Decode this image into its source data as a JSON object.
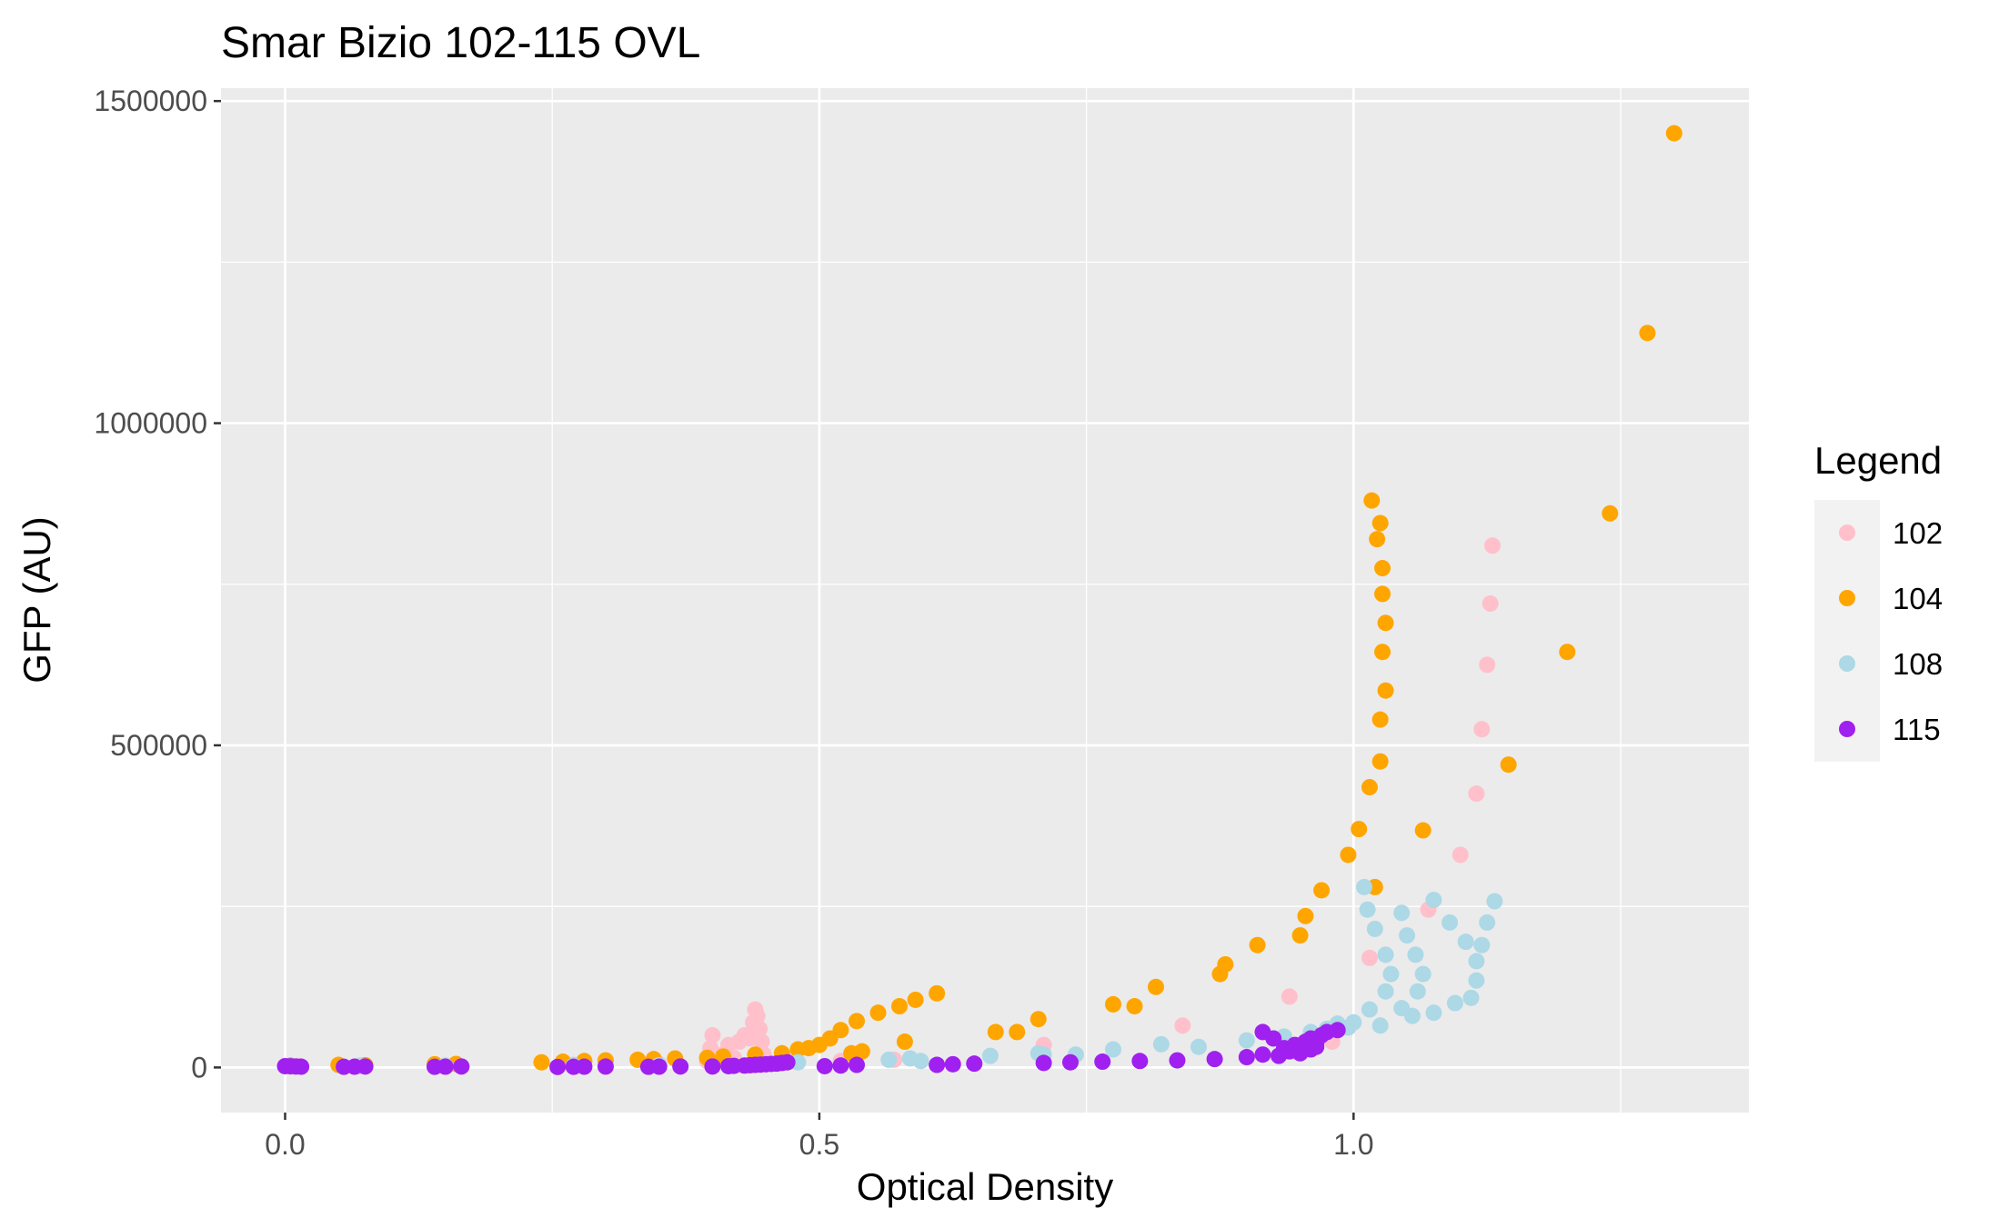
{
  "chart_data": {
    "type": "scatter",
    "title": "Smar Bizio 102-115 OVL",
    "xlabel": "Optical Density",
    "ylabel": "GFP (AU)",
    "xlim": [
      -0.06,
      1.37
    ],
    "ylim": [
      -70000,
      1520000
    ],
    "x_ticks": [
      0.0,
      0.5,
      1.0
    ],
    "x_tick_labels": [
      "0.0",
      "0.5",
      "1.0"
    ],
    "y_ticks": [
      0,
      500000,
      1000000,
      1500000
    ],
    "y_tick_labels": [
      "0",
      "500000",
      "1000000",
      "1500000"
    ],
    "grid": true,
    "legend": {
      "title": "Legend",
      "position": "right",
      "entries": [
        "102",
        "104",
        "108",
        "115"
      ]
    },
    "series": [
      {
        "name": "102",
        "color": "#FFC0CB",
        "points": [
          [
            0.005,
            2000
          ],
          [
            0.012,
            2500
          ],
          [
            0.07,
            3000
          ],
          [
            0.15,
            3000
          ],
          [
            0.27,
            4000
          ],
          [
            0.35,
            5000
          ],
          [
            0.395,
            10000
          ],
          [
            0.398,
            30000
          ],
          [
            0.4,
            50000
          ],
          [
            0.41,
            20000
          ],
          [
            0.415,
            35000
          ],
          [
            0.42,
            15000
          ],
          [
            0.425,
            40000
          ],
          [
            0.43,
            50000
          ],
          [
            0.435,
            45000
          ],
          [
            0.438,
            70000
          ],
          [
            0.44,
            90000
          ],
          [
            0.442,
            80000
          ],
          [
            0.444,
            60000
          ],
          [
            0.446,
            40000
          ],
          [
            0.448,
            20000
          ],
          [
            0.52,
            10000
          ],
          [
            0.57,
            12000
          ],
          [
            0.71,
            35000
          ],
          [
            0.84,
            65000
          ],
          [
            0.94,
            110000
          ],
          [
            0.98,
            40000
          ],
          [
            1.015,
            170000
          ],
          [
            1.07,
            245000
          ],
          [
            1.1,
            330000
          ],
          [
            1.115,
            425000
          ],
          [
            1.12,
            525000
          ],
          [
            1.125,
            625000
          ],
          [
            1.128,
            720000
          ],
          [
            1.13,
            810000
          ]
        ]
      },
      {
        "name": "104",
        "color": "#FFA500",
        "points": [
          [
            0.005,
            3000
          ],
          [
            0.05,
            4000
          ],
          [
            0.075,
            3500
          ],
          [
            0.14,
            5000
          ],
          [
            0.16,
            5500
          ],
          [
            0.24,
            8000
          ],
          [
            0.26,
            9000
          ],
          [
            0.28,
            10000
          ],
          [
            0.3,
            11000
          ],
          [
            0.33,
            12000
          ],
          [
            0.345,
            13000
          ],
          [
            0.365,
            14000
          ],
          [
            0.395,
            15000
          ],
          [
            0.41,
            17000
          ],
          [
            0.44,
            20000
          ],
          [
            0.465,
            22000
          ],
          [
            0.48,
            28000
          ],
          [
            0.49,
            30000
          ],
          [
            0.5,
            35000
          ],
          [
            0.51,
            45000
          ],
          [
            0.52,
            58000
          ],
          [
            0.535,
            72000
          ],
          [
            0.555,
            85000
          ],
          [
            0.575,
            95000
          ],
          [
            0.59,
            105000
          ],
          [
            0.61,
            115000
          ],
          [
            0.53,
            22000
          ],
          [
            0.54,
            25000
          ],
          [
            0.58,
            40000
          ],
          [
            0.665,
            55000
          ],
          [
            0.685,
            55000
          ],
          [
            0.705,
            75000
          ],
          [
            0.775,
            98000
          ],
          [
            0.795,
            95000
          ],
          [
            0.815,
            125000
          ],
          [
            0.875,
            145000
          ],
          [
            0.88,
            160000
          ],
          [
            0.91,
            190000
          ],
          [
            0.95,
            205000
          ],
          [
            0.955,
            235000
          ],
          [
            0.97,
            275000
          ],
          [
            0.995,
            330000
          ],
          [
            1.005,
            370000
          ],
          [
            1.015,
            435000
          ],
          [
            1.02,
            280000
          ],
          [
            1.025,
            475000
          ],
          [
            1.025,
            540000
          ],
          [
            1.03,
            585000
          ],
          [
            1.027,
            645000
          ],
          [
            1.03,
            690000
          ],
          [
            1.027,
            735000
          ],
          [
            1.027,
            775000
          ],
          [
            1.022,
            820000
          ],
          [
            1.025,
            845000
          ],
          [
            1.017,
            880000
          ],
          [
            1.065,
            368000
          ],
          [
            1.145,
            470000
          ],
          [
            1.2,
            645000
          ],
          [
            1.24,
            860000
          ],
          [
            1.275,
            1140000
          ],
          [
            1.3,
            1450000
          ]
        ]
      },
      {
        "name": "108",
        "color": "#ADD8E6",
        "points": [
          [
            0.005,
            2000
          ],
          [
            0.07,
            2000
          ],
          [
            0.15,
            2500
          ],
          [
            0.27,
            3000
          ],
          [
            0.35,
            3500
          ],
          [
            0.48,
            8000
          ],
          [
            0.565,
            12000
          ],
          [
            0.585,
            14000
          ],
          [
            0.595,
            10000
          ],
          [
            0.66,
            18000
          ],
          [
            0.705,
            22000
          ],
          [
            0.71,
            20000
          ],
          [
            0.74,
            20000
          ],
          [
            0.775,
            28000
          ],
          [
            0.82,
            36000
          ],
          [
            0.855,
            32000
          ],
          [
            0.9,
            42000
          ],
          [
            0.935,
            48000
          ],
          [
            0.96,
            55000
          ],
          [
            0.975,
            60000
          ],
          [
            0.985,
            68000
          ],
          [
            0.995,
            62000
          ],
          [
            1.0,
            70000
          ],
          [
            1.01,
            280000
          ],
          [
            1.013,
            245000
          ],
          [
            1.015,
            90000
          ],
          [
            1.02,
            215000
          ],
          [
            1.025,
            65000
          ],
          [
            1.03,
            175000
          ],
          [
            1.035,
            145000
          ],
          [
            1.03,
            118000
          ],
          [
            1.045,
            92000
          ],
          [
            1.045,
            240000
          ],
          [
            1.05,
            205000
          ],
          [
            1.055,
            80000
          ],
          [
            1.058,
            175000
          ],
          [
            1.06,
            118000
          ],
          [
            1.065,
            145000
          ],
          [
            1.075,
            85000
          ],
          [
            1.075,
            260000
          ],
          [
            1.09,
            225000
          ],
          [
            1.095,
            100000
          ],
          [
            1.105,
            195000
          ],
          [
            1.11,
            108000
          ],
          [
            1.115,
            135000
          ],
          [
            1.115,
            165000
          ],
          [
            1.12,
            190000
          ],
          [
            1.125,
            225000
          ],
          [
            1.132,
            258000
          ]
        ]
      },
      {
        "name": "115",
        "color": "#A020F0",
        "points": [
          [
            0.0,
            2000
          ],
          [
            0.005,
            1800
          ],
          [
            0.01,
            1500
          ],
          [
            0.015,
            1200
          ],
          [
            0.055,
            1000
          ],
          [
            0.065,
            1200
          ],
          [
            0.075,
            1500
          ],
          [
            0.14,
            1000
          ],
          [
            0.15,
            1200
          ],
          [
            0.165,
            1500
          ],
          [
            0.255,
            800
          ],
          [
            0.27,
            1000
          ],
          [
            0.28,
            1200
          ],
          [
            0.3,
            1400
          ],
          [
            0.34,
            1000
          ],
          [
            0.35,
            1200
          ],
          [
            0.37,
            1500
          ],
          [
            0.4,
            1500
          ],
          [
            0.415,
            2000
          ],
          [
            0.42,
            2500
          ],
          [
            0.43,
            3000
          ],
          [
            0.435,
            3500
          ],
          [
            0.44,
            4000
          ],
          [
            0.445,
            4500
          ],
          [
            0.45,
            5000
          ],
          [
            0.455,
            5500
          ],
          [
            0.46,
            6000
          ],
          [
            0.465,
            7000
          ],
          [
            0.47,
            8000
          ],
          [
            0.505,
            2000
          ],
          [
            0.52,
            3000
          ],
          [
            0.535,
            4000
          ],
          [
            0.61,
            4000
          ],
          [
            0.625,
            5000
          ],
          [
            0.645,
            6000
          ],
          [
            0.71,
            7000
          ],
          [
            0.735,
            8000
          ],
          [
            0.765,
            9000
          ],
          [
            0.8,
            10000
          ],
          [
            0.835,
            11000
          ],
          [
            0.87,
            13000
          ],
          [
            0.9,
            16000
          ],
          [
            0.915,
            20000
          ],
          [
            0.915,
            55000
          ],
          [
            0.925,
            45000
          ],
          [
            0.93,
            18000
          ],
          [
            0.935,
            30000
          ],
          [
            0.94,
            25000
          ],
          [
            0.945,
            35000
          ],
          [
            0.95,
            22000
          ],
          [
            0.955,
            40000
          ],
          [
            0.96,
            28000
          ],
          [
            0.96,
            45000
          ],
          [
            0.965,
            38000
          ],
          [
            0.965,
            32000
          ],
          [
            0.97,
            50000
          ],
          [
            0.975,
            55000
          ],
          [
            0.985,
            58000
          ]
        ]
      }
    ]
  }
}
